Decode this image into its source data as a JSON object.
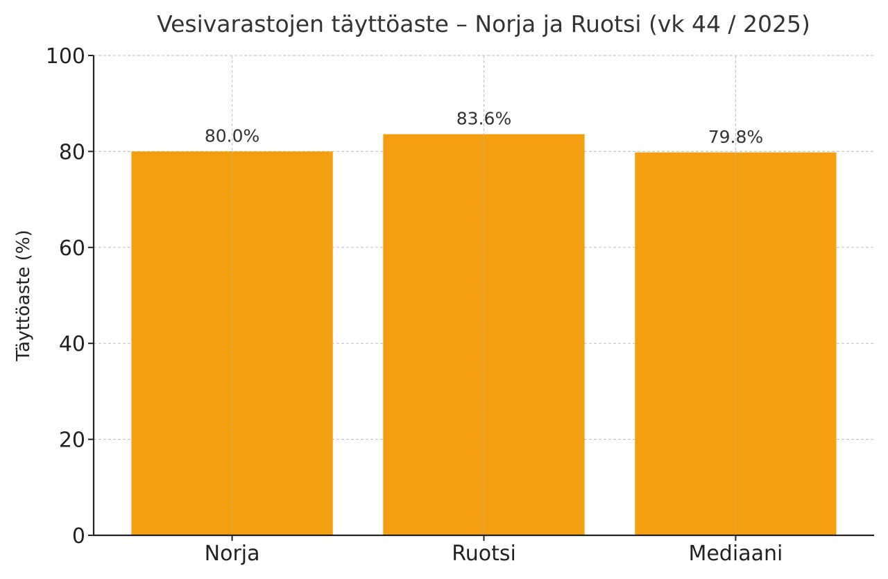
{
  "chart_data": {
    "type": "bar",
    "title": "Vesivarastojen täyttöaste – Norja ja Ruotsi (vk 44 / 2025)",
    "xlabel": "",
    "ylabel": "Täyttöaste (%)",
    "categories": [
      "Norja",
      "Ruotsi",
      "Mediaani"
    ],
    "values": [
      80.0,
      83.6,
      79.8
    ],
    "value_labels": [
      "80.0%",
      "83.6%",
      "79.8%"
    ],
    "ylim": [
      0,
      100
    ],
    "yticks": [
      0,
      20,
      40,
      60,
      80,
      100
    ],
    "ytick_labels": [
      "0",
      "20",
      "40",
      "60",
      "80",
      "100"
    ],
    "grid": true,
    "legend": "none",
    "bar_color": "#F39F0F"
  }
}
